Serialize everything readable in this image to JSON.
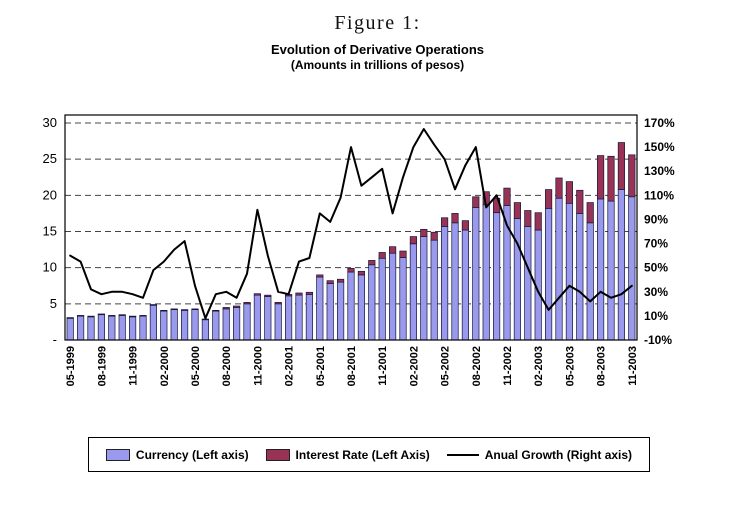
{
  "header": {
    "figure_label": "Figure 1:",
    "title": "Evolution of Derivative Operations",
    "subtitle": "(Amounts in trillions of pesos)"
  },
  "legend": {
    "items": [
      {
        "label": "Currency (Left axis)",
        "swatch": "#9999ee",
        "type": "box"
      },
      {
        "label": "Interest Rate (Left Axis)",
        "swatch": "#993355",
        "type": "box"
      },
      {
        "label": "Anual Growth (Right axis)",
        "swatch": "#000000",
        "type": "line"
      }
    ]
  },
  "chart_data": {
    "type": "combo-stacked-bar-line",
    "title": "Evolution of Derivative Operations",
    "subtitle": "(Amounts in trillions of pesos)",
    "grid": "dashed-horizontal",
    "legend_position": "bottom",
    "x_tick_every": 3,
    "categories": [
      "05-1999",
      "06-1999",
      "07-1999",
      "08-1999",
      "09-1999",
      "10-1999",
      "11-1999",
      "12-1999",
      "01-2000",
      "02-2000",
      "03-2000",
      "04-2000",
      "05-2000",
      "06-2000",
      "07-2000",
      "08-2000",
      "09-2000",
      "10-2000",
      "11-2000",
      "12-2000",
      "01-2001",
      "02-2001",
      "03-2001",
      "04-2001",
      "05-2001",
      "06-2001",
      "07-2001",
      "08-2001",
      "09-2001",
      "10-2001",
      "11-2001",
      "12-2001",
      "01-2002",
      "02-2002",
      "03-2002",
      "04-2002",
      "05-2002",
      "06-2002",
      "07-2002",
      "08-2002",
      "09-2002",
      "10-2002",
      "11-2002",
      "12-2002",
      "01-2003",
      "02-2003",
      "03-2003",
      "04-2003",
      "05-2003",
      "06-2003",
      "07-2003",
      "08-2003",
      "09-2003",
      "10-2003",
      "11-2003"
    ],
    "series": [
      {
        "name": "Currency (Left axis)",
        "type": "bar",
        "axis": "left",
        "color": "#9999ee",
        "values": [
          3.0,
          3.3,
          3.2,
          3.5,
          3.3,
          3.4,
          3.2,
          3.3,
          4.8,
          4.0,
          4.2,
          4.1,
          4.2,
          2.8,
          4.0,
          4.3,
          4.5,
          5.0,
          6.2,
          6.0,
          5.0,
          6.1,
          6.2,
          6.3,
          8.7,
          7.8,
          8.0,
          9.4,
          9.0,
          10.4,
          11.3,
          12.0,
          11.4,
          13.3,
          14.3,
          13.8,
          15.7,
          16.2,
          15.2,
          18.3,
          18.7,
          17.6,
          18.6,
          16.8,
          15.7,
          15.2,
          18.2,
          19.6,
          18.9,
          17.5,
          16.2,
          19.5,
          19.2,
          20.8,
          19.8
        ]
      },
      {
        "name": "Interest Rate (Left Axis)",
        "type": "bar",
        "axis": "left",
        "color": "#993355",
        "values": [
          0.1,
          0.1,
          0.1,
          0.1,
          0.1,
          0.1,
          0.1,
          0.1,
          0.1,
          0.1,
          0.1,
          0.1,
          0.1,
          0.1,
          0.1,
          0.2,
          0.2,
          0.2,
          0.2,
          0.2,
          0.2,
          0.2,
          0.3,
          0.3,
          0.3,
          0.4,
          0.4,
          0.5,
          0.5,
          0.6,
          0.8,
          0.9,
          0.9,
          1.0,
          1.0,
          1.1,
          1.2,
          1.3,
          1.3,
          1.5,
          1.8,
          2.0,
          2.4,
          2.2,
          2.2,
          2.4,
          2.6,
          2.8,
          3.0,
          3.2,
          2.8,
          6.0,
          6.2,
          6.5,
          5.8
        ]
      },
      {
        "name": "Anual Growth (Right axis)",
        "type": "line",
        "axis": "right",
        "color": "#000000",
        "values": [
          60,
          55,
          32,
          28,
          30,
          30,
          28,
          25,
          48,
          55,
          65,
          72,
          35,
          8,
          28,
          30,
          25,
          45,
          98,
          60,
          30,
          28,
          55,
          58,
          95,
          88,
          108,
          150,
          118,
          125,
          132,
          95,
          125,
          150,
          165,
          152,
          140,
          115,
          135,
          150,
          100,
          110,
          85,
          70,
          50,
          30,
          15,
          25,
          35,
          30,
          22,
          30,
          25,
          28,
          35
        ]
      }
    ],
    "left_axis": {
      "min": 0,
      "max": 30,
      "step": 5,
      "tick_labels": [
        "-",
        "5",
        "10",
        "15",
        "20",
        "25",
        "30"
      ]
    },
    "right_axis": {
      "min": -10,
      "max": 170,
      "step": 20,
      "suffix": "%",
      "tick_labels": [
        "-10%",
        "10%",
        "30%",
        "50%",
        "70%",
        "90%",
        "110%",
        "130%",
        "150%",
        "170%"
      ]
    }
  }
}
